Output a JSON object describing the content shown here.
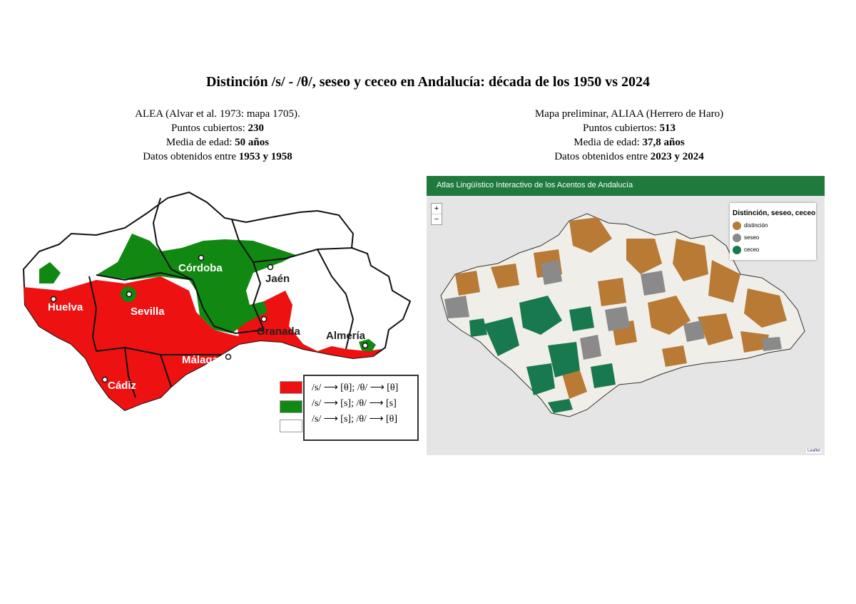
{
  "title": "Distinción /s/ - /θ/, seseo y ceceo en Andalucía: década de los 1950 vs 2024",
  "left": {
    "line1": "ALEA (Alvar et al. 1973: mapa 1705).",
    "points_label": "Puntos cubiertos: ",
    "points_value": "230",
    "age_label": "Media de edad: ",
    "age_value": "50 años",
    "dates_label": "Datos obtenidos entre ",
    "dates_value": "1953 y 1958",
    "cities": [
      "Huelva",
      "Sevilla",
      "Córdoba",
      "Jaén",
      "Granada",
      "Almería",
      "Málaga",
      "Cádiz"
    ],
    "legend": [
      {
        "color": "#ee1111",
        "label": "/s/ ⟶ [θ]; /θ/ ⟶ [θ]"
      },
      {
        "color": "#118811",
        "label": "/s/ ⟶ [s]; /θ/ ⟶ [s]"
      },
      {
        "color": "#ffffff",
        "label": "/s/ ⟶ [s]; /θ/ ⟶ [θ]"
      }
    ]
  },
  "right": {
    "line1": "Mapa preliminar, ALIAA (Herrero de Haro)",
    "points_label": "Puntos cubiertos: ",
    "points_value": "513",
    "age_label": "Media de edad: ",
    "age_value": "37,8 años",
    "dates_label": "Datos obtenidos entre ",
    "dates_value": "2023 y 2024",
    "header": "Atlas Lingüístico Interactivo de los Acentos de Andalucía",
    "zoom_in": "+",
    "zoom_out": "−",
    "legend_title": "Distinción, seseo, ceceo",
    "legend": [
      {
        "color": "#b87a34",
        "label": "distinción"
      },
      {
        "color": "#8a8a8a",
        "label": "seseo"
      },
      {
        "color": "#18794e",
        "label": "ceceo"
      }
    ],
    "attribution": "Leaflet"
  },
  "colors": {
    "red": "#ee1111",
    "green": "#118811",
    "brown": "#b87a34",
    "grey": "#8a8a8a",
    "teal": "#18794e",
    "header_green": "#1f7a3d"
  }
}
